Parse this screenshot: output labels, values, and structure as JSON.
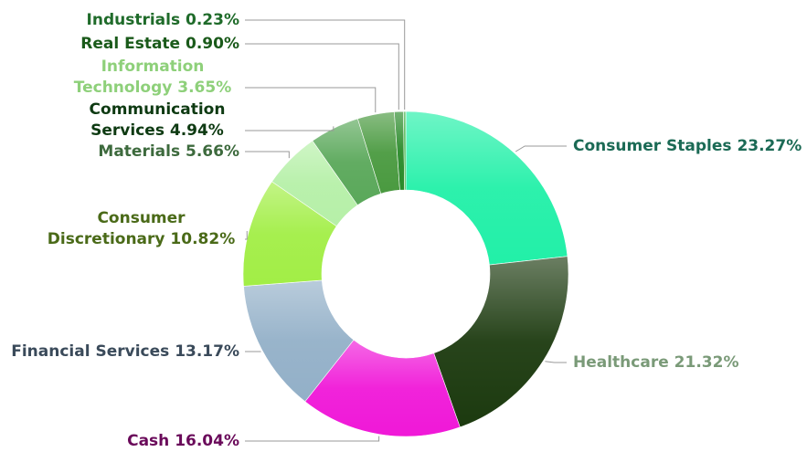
{
  "chart_data": {
    "type": "donut",
    "categories": [
      "Consumer Staples",
      "Healthcare",
      "Cash",
      "Financial Services",
      "Consumer Discretionary",
      "Materials",
      "Communication Services",
      "Information Technology",
      "Real Estate",
      "Industrials"
    ],
    "values": [
      23.27,
      21.32,
      16.04,
      13.17,
      10.82,
      5.66,
      4.94,
      3.65,
      0.9,
      0.23
    ],
    "value_labels": [
      "23.27%",
      "21.32%",
      "16.04%",
      "13.17%",
      "10.82%",
      "5.66%",
      "4.94%",
      "3.65%",
      "0.90%",
      "0.23%"
    ],
    "colors": [
      "#22f0a8",
      "#1c3a0f",
      "#f018d8",
      "#93b0c8",
      "#a2ee46",
      "#b6f0a8",
      "#5aa85a",
      "#4a9a40",
      "#2a8a2a",
      "#3ab040"
    ],
    "label_colors": [
      "#1b6a55",
      "#7a9a78",
      "#6a0a5a",
      "#3a4a5a",
      "#4a6a18",
      "#3d6a3d",
      "#0e3a12",
      "#8ed07a",
      "#1a5a1a",
      "#1f6b2a"
    ]
  }
}
